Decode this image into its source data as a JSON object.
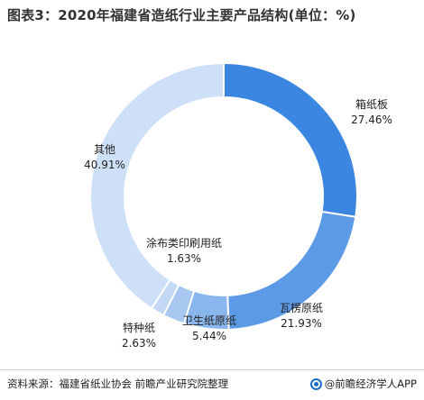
{
  "title": "图表3：2020年福建省造纸行业主要产品结构(单位：%)",
  "footer": {
    "source": "资料来源：福建省纸业协会 前瞻产业研究院整理",
    "brand": "@前瞻经济学人APP"
  },
  "colors": {
    "slice_fills": [
      "#3a86e0",
      "#5d9ae6",
      "#8ab6ee",
      "#a8c8f1",
      "#c2d8f5",
      "#cde0f8"
    ]
  },
  "chart_data": {
    "type": "pie",
    "donut": true,
    "start": "top, clockwise",
    "categories": [
      "箱纸板",
      "瓦楞原纸",
      "卫生纸原纸",
      "特种纸",
      "涂布类印刷用纸",
      "其他"
    ],
    "values": [
      27.46,
      21.93,
      5.44,
      2.63,
      1.63,
      40.91
    ],
    "value_labels": [
      "27.46%",
      "21.93%",
      "5.44%",
      "2.63%",
      "1.63%",
      "40.91%"
    ]
  }
}
